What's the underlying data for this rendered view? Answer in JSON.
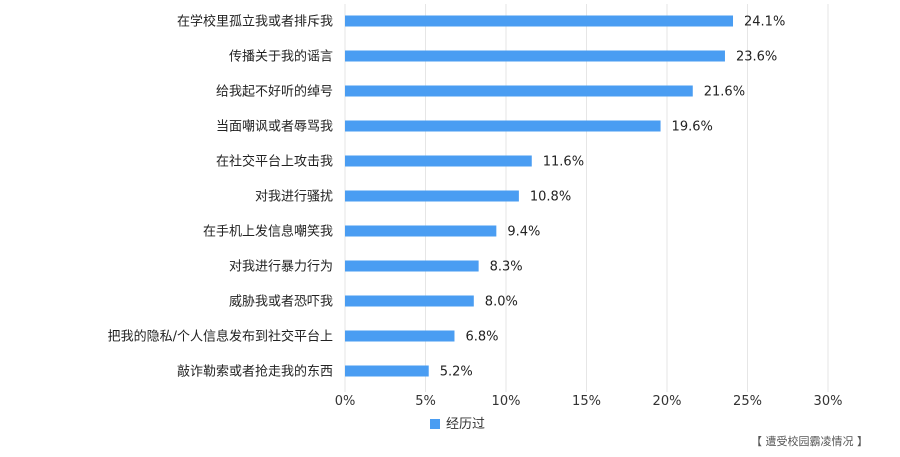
{
  "chart_data": {
    "type": "bar",
    "orientation": "horizontal",
    "categories": [
      "在学校里孤立我或者排斥我",
      "传播关于我的谣言",
      "给我起不好听的绰号",
      "当面嘲讽或者辱骂我",
      "在社交平台上攻击我",
      "对我进行骚扰",
      "在手机上发信息嘲笑我",
      "对我进行暴力行为",
      "威胁我或者恐吓我",
      "把我的隐私/个人信息发布到社交平台上",
      "敲诈勒索或者抢走我的东西"
    ],
    "series": [
      {
        "name": "经历过",
        "values": [
          24.1,
          23.6,
          21.6,
          19.6,
          11.6,
          10.8,
          9.4,
          8.3,
          8.0,
          6.8,
          5.2
        ],
        "color": "#4a9df2"
      }
    ],
    "value_labels": [
      "24.1%",
      "23.6%",
      "21.6%",
      "19.6%",
      "11.6%",
      "10.8%",
      "9.4%",
      "8.3%",
      "8.0%",
      "6.8%",
      "5.2%"
    ],
    "xlim": [
      0,
      30
    ],
    "xticks": [
      0,
      5,
      10,
      15,
      20,
      25,
      30
    ],
    "xtick_labels": [
      "0%",
      "5%",
      "10%",
      "15%",
      "20%",
      "25%",
      "30%"
    ],
    "grid": "vertical",
    "legend_position": "bottom",
    "title": "",
    "xlabel": "",
    "ylabel": ""
  },
  "note": "【 遭受校园霸凌情况 】",
  "colors": {
    "bar": "#4a9df2",
    "grid": "#e6e6e6"
  }
}
